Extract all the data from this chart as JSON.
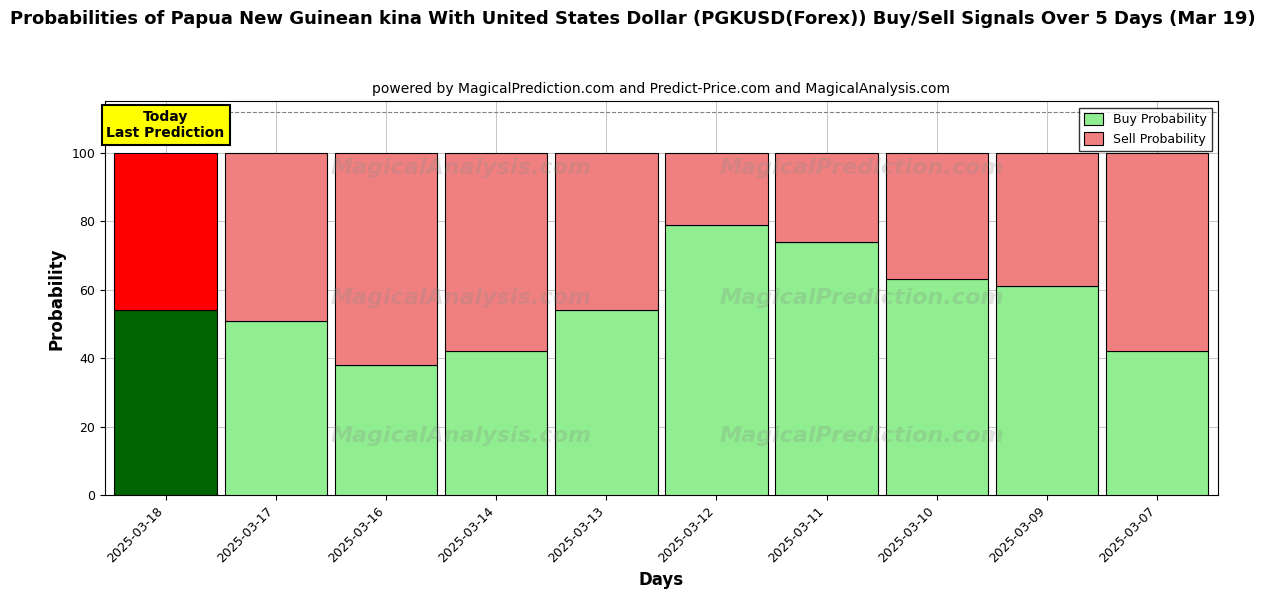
{
  "title": "Probabilities of Papua New Guinean kina With United States Dollar (PGKUSD(Forex)) Buy/Sell Signals Over 5 Days (Mar 19)",
  "subtitle": "powered by MagicalPrediction.com and Predict-Price.com and MagicalAnalysis.com",
  "xlabel": "Days",
  "ylabel": "Probability",
  "categories": [
    "2025-03-18",
    "2025-03-17",
    "2025-03-16",
    "2025-03-14",
    "2025-03-13",
    "2025-03-12",
    "2025-03-11",
    "2025-03-10",
    "2025-03-09",
    "2025-03-07"
  ],
  "buy_values": [
    54,
    51,
    38,
    42,
    54,
    79,
    74,
    63,
    61,
    42
  ],
  "sell_values": [
    46,
    49,
    62,
    58,
    46,
    21,
    26,
    37,
    39,
    58
  ],
  "buy_colors": [
    "#006400",
    "#90EE90",
    "#90EE90",
    "#90EE90",
    "#90EE90",
    "#90EE90",
    "#90EE90",
    "#90EE90",
    "#90EE90",
    "#90EE90"
  ],
  "sell_colors": [
    "#FF0000",
    "#F08080",
    "#F08080",
    "#F08080",
    "#F08080",
    "#F08080",
    "#F08080",
    "#F08080",
    "#F08080",
    "#F08080"
  ],
  "today_label": "Today\nLast Prediction",
  "ylim": [
    0,
    115
  ],
  "yticks": [
    0,
    20,
    40,
    60,
    80,
    100
  ],
  "legend_buy_color": "#90EE90",
  "legend_sell_color": "#F08080",
  "watermark1": "MagicalAnalysis.com",
  "watermark2": "MagicalPrediction.com",
  "today_box_color": "#FFFF00",
  "today_box_edge_color": "#000000",
  "title_fontsize": 13,
  "subtitle_fontsize": 10,
  "axis_fontsize": 12,
  "tick_fontsize": 9,
  "background_color": "#ffffff",
  "grid_color": "#bbbbbb",
  "bar_width": 0.93
}
